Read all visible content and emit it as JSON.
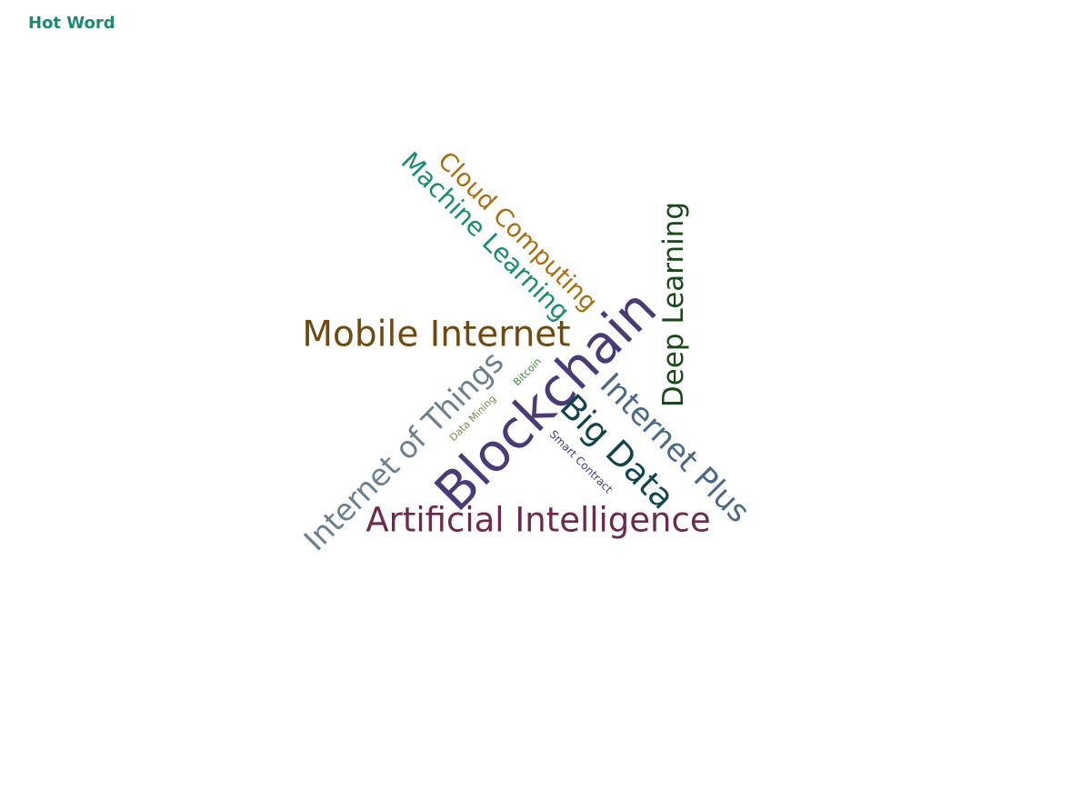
{
  "chart_data": {
    "type": "wordcloud",
    "title": "Hot Word",
    "title_color": "#1a8a72",
    "words": [
      {
        "text": "Blockchain",
        "weight": 100,
        "color": "#4a3a78",
        "rotation": -45
      },
      {
        "text": "Artificial Intelligence",
        "weight": 70,
        "color": "#6e2a4e",
        "rotation": 0
      },
      {
        "text": "Mobile Internet",
        "weight": 72,
        "color": "#6e4a10",
        "rotation": 0
      },
      {
        "text": "Internet of Things",
        "weight": 68,
        "color": "#6a8090",
        "rotation": -45
      },
      {
        "text": "Internet Plus",
        "weight": 68,
        "color": "#4a6888",
        "rotation": 45
      },
      {
        "text": "Big Data",
        "weight": 72,
        "color": "#10444e",
        "rotation": 45
      },
      {
        "text": "Deep Learning",
        "weight": 62,
        "color": "#1a4a1a",
        "rotation": -90
      },
      {
        "text": "Machine Learning",
        "weight": 58,
        "color": "#1a8a72",
        "rotation": 45
      },
      {
        "text": "Cloud Computing",
        "weight": 58,
        "color": "#a86e10",
        "rotation": 45
      },
      {
        "text": "Smart Contract",
        "weight": 20,
        "color": "#3a3a8a",
        "rotation": 45
      },
      {
        "text": "Data Mining",
        "weight": 18,
        "color": "#7a8a4a",
        "rotation": -45
      },
      {
        "text": "Bitcoin",
        "weight": 18,
        "color": "#3a8a3a",
        "rotation": -45
      }
    ]
  }
}
